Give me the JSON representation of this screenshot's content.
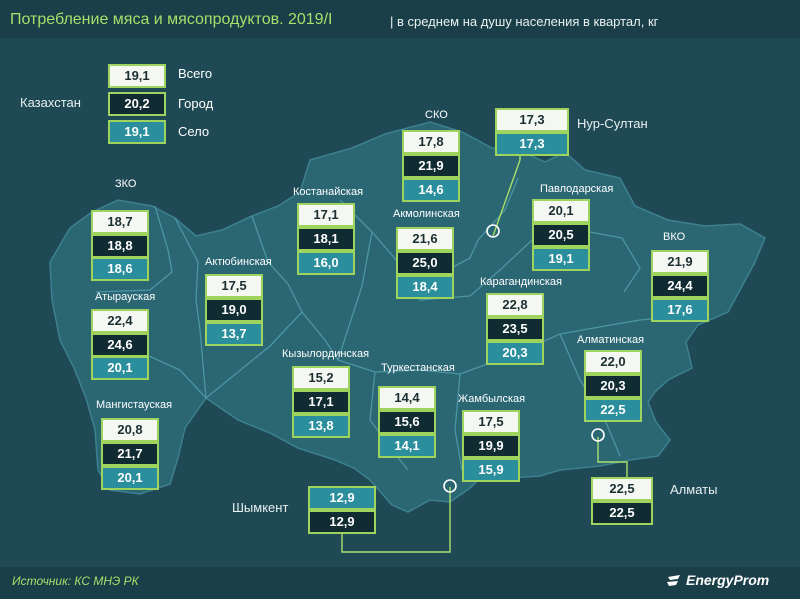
{
  "header": {
    "title": "Потребление мяса и мясопродуктов. 2019/I",
    "subtitle": "| в среднем на душу населения в квартал, кг"
  },
  "legend": {
    "country": "Казахстан",
    "total": {
      "label": "Всего",
      "value": "19,1"
    },
    "city": {
      "label": "Город",
      "value": "20,2"
    },
    "rural": {
      "label": "Село",
      "value": "19,1"
    }
  },
  "regions": {
    "zko": {
      "name": "ЗКО",
      "total": "18,7",
      "city": "18,8",
      "rural": "18,6"
    },
    "atyrau": {
      "name": "Атырауская",
      "total": "22,4",
      "city": "24,6",
      "rural": "20,1"
    },
    "mangystau": {
      "name": "Мангистауская",
      "total": "20,8",
      "city": "21,7",
      "rural": "20,1"
    },
    "aktobe": {
      "name": "Актюбинская",
      "total": "17,5",
      "city": "19,0",
      "rural": "13,7"
    },
    "kostanay": {
      "name": "Костанайская",
      "total": "17,1",
      "city": "18,1",
      "rural": "16,0"
    },
    "sko": {
      "name": "СКО",
      "total": "17,8",
      "city": "21,9",
      "rural": "14,6"
    },
    "akmola": {
      "name": "Акмолинская",
      "total": "21,6",
      "city": "25,0",
      "rural": "18,4"
    },
    "pavlodar": {
      "name": "Павлодарская",
      "total": "20,1",
      "city": "20,5",
      "rural": "19,1"
    },
    "vko": {
      "name": "ВКО",
      "total": "21,9",
      "city": "24,4",
      "rural": "17,6"
    },
    "karaganda": {
      "name": "Карагандинская",
      "total": "22,8",
      "city": "23,5",
      "rural": "20,3"
    },
    "kyzylorda": {
      "name": "Кызылординская",
      "total": "15,2",
      "city": "17,1",
      "rural": "13,8"
    },
    "turkestan": {
      "name": "Туркестанская",
      "total": "14,4",
      "city": "15,6",
      "rural": "14,1"
    },
    "zhambyl": {
      "name": "Жамбылская",
      "total": "17,5",
      "city": "19,9",
      "rural": "15,9"
    },
    "almaty_region": {
      "name": "Алматинская",
      "total": "22,0",
      "city": "20,3",
      "rural": "22,5"
    }
  },
  "cities": {
    "nursultan": {
      "name": "Нур-Султан",
      "total": "17,3",
      "city": "17,3"
    },
    "almaty": {
      "name": "Алматы",
      "total": "22,5",
      "city": "22,5"
    },
    "shymkent": {
      "name": "Шымкент",
      "total": "12,9",
      "city": "12,9"
    }
  },
  "footer": {
    "source": "Источник: КС МНЭ РК",
    "brand": "EnergyProm"
  },
  "colors": {
    "background": "#1f4a55",
    "map_fill": "#2b6673",
    "accent_green": "#9ed35e",
    "total_box": "#f4f7f2",
    "city_box": "#102b31",
    "rural_box": "#2a8e9c"
  }
}
